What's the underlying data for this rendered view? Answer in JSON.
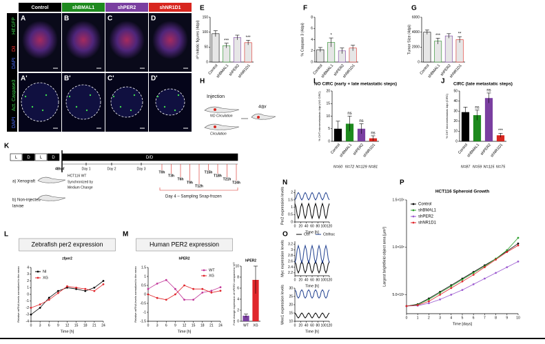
{
  "panels": {
    "letters": [
      "A",
      "B",
      "C",
      "D",
      "A'",
      "B'",
      "C'",
      "D'",
      "E",
      "F",
      "G",
      "H",
      "I",
      "J",
      "K",
      "L",
      "M",
      "N",
      "O",
      "P"
    ],
    "conditions": [
      "Control",
      "shBMAL1",
      "shPER2",
      "shNR1D1"
    ],
    "condition_colors": [
      "#000000",
      "#1e8a1e",
      "#7a3fa0",
      "#d8261f"
    ],
    "row1_stain": [
      "DAPI",
      "DiI",
      "Hif:GFP"
    ],
    "row2_stain": [
      "DAPI",
      "Act. Caspase3"
    ],
    "injection": {
      "title": "Injection",
      "no_circ": "NO Circulation",
      "circ": "Circulation",
      "dpi": "4dpi"
    },
    "timeline": {
      "light": [
        "L",
        "D",
        "L",
        "D"
      ],
      "dd": "D/D",
      "hpf": "48hpf",
      "days": [
        "Day 1",
        "Day 2",
        "Day 3"
      ],
      "times": [
        "T0h",
        "T3h",
        "T6h",
        "T9h",
        "T12h",
        "T15h",
        "T18h",
        "T21h",
        "T24h"
      ],
      "xenograft": "a) Xenograft",
      "cells": "HCT116 WT",
      "sync": [
        "Synchronized by",
        "Medium Change"
      ],
      "noninj": [
        "b) Non-injected",
        "larvae"
      ],
      "day4": "Day 4 – Sampling Snap-frozen"
    }
  },
  "chart_data": [
    {
      "type": "bar",
      "ylabel": "nº mitotic figures (4dpi)",
      "categories": [
        "Control",
        "shBMAL1",
        "shPER2",
        "shNR1D1"
      ],
      "values": [
        95,
        55,
        82,
        65
      ],
      "errors": [
        10,
        8,
        8,
        8
      ],
      "color": "#e6e6e6",
      "edge_colors": [
        "#000000",
        "#1e8a1e",
        "#7a3fa0",
        "#d8261f"
      ],
      "ylim": [
        0,
        150
      ],
      "yticks": [
        0,
        50,
        100,
        150
      ],
      "annotations": [
        {
          "category": "shBMAL1",
          "text": "***"
        },
        {
          "category": "shNR1D1",
          "text": "***"
        }
      ]
    },
    {
      "type": "bar",
      "ylabel": "% Caspase 3 (4dpi)",
      "categories": [
        "Control",
        "shBMAL1",
        "shPER2",
        "shNR1D1"
      ],
      "values": [
        2.2,
        3.5,
        2,
        2.5
      ],
      "errors": [
        0.4,
        0.8,
        0.5,
        0.5
      ],
      "color": "#e6e6e6",
      "edge_colors": [
        "#000000",
        "#1e8a1e",
        "#7a3fa0",
        "#d8261f"
      ],
      "ylim": [
        0,
        8
      ],
      "yticks": [
        0,
        2,
        4,
        6,
        8
      ],
      "annotations": [
        {
          "category": "shBMAL1",
          "text": "*"
        }
      ]
    },
    {
      "type": "bar",
      "ylabel": "Tumor Size (4dpi)",
      "categories": [
        "Control",
        "shBMAL1",
        "shPER2",
        "shNR1D1"
      ],
      "values": [
        4000,
        2800,
        3500,
        3000
      ],
      "errors": [
        300,
        400,
        300,
        400
      ],
      "color": "#e6e6e6",
      "edge_colors": [
        "#000000",
        "#1e8a1e",
        "#7a3fa0",
        "#d8261f"
      ],
      "ylim": [
        0,
        6000
      ],
      "yticks": [
        0,
        2000,
        4000,
        6000
      ],
      "annotations": [
        {
          "category": "shBMAL1",
          "text": "***"
        },
        {
          "category": "shNR1D1",
          "text": "**"
        }
      ]
    },
    {
      "type": "bar",
      "title": "NO CIRC (early + late metastatic steps)",
      "ylabel": "% CHT micrometastasis 4dpi (NO CIRC)",
      "categories": [
        "Control",
        "shBMAL1",
        "shPER2",
        "shNR1D1"
      ],
      "values": [
        5,
        7,
        5,
        1.2
      ],
      "errors": [
        3,
        3,
        2,
        1
      ],
      "colors": [
        "#000000",
        "#1e8a1e",
        "#7a3fa0",
        "#d8261f"
      ],
      "ylim": [
        0,
        20
      ],
      "yticks": [
        0,
        5,
        10,
        15,
        20
      ],
      "annotations": [
        {
          "category": "shBMAL1",
          "text": "ns"
        },
        {
          "category": "shPER2",
          "text": "ns"
        },
        {
          "category": "shNR1D1",
          "text": "ns"
        }
      ],
      "n_labels": [
        "N=60",
        "N=72",
        "N=129",
        "N=81"
      ]
    },
    {
      "type": "bar",
      "title": "CIRC (late metastatic steps)",
      "ylabel": "% CHT micrometastasis 4dpi (CIRC)",
      "categories": [
        "Control",
        "shBMAL1",
        "shPER2",
        "shNR1D1"
      ],
      "values": [
        29,
        26,
        43,
        6
      ],
      "errors": [
        5,
        5,
        5,
        2
      ],
      "colors": [
        "#000000",
        "#1e8a1e",
        "#7a3fa0",
        "#d8261f"
      ],
      "ylim": [
        0,
        50
      ],
      "yticks": [
        0,
        10,
        20,
        30,
        40,
        50
      ],
      "annotations": [
        {
          "category": "shBMAL1",
          "text": "ns"
        },
        {
          "category": "shPER2",
          "text": "ns"
        },
        {
          "category": "shNR1D1",
          "text": "***"
        }
      ],
      "n_labels": [
        "N=87",
        "N=59",
        "N=115",
        "N=75"
      ]
    },
    {
      "type": "line",
      "title": "Zebrafish per2 expression",
      "subtitle": "zfper2",
      "ylabel": "Relative mRNA levels normalized to the mean",
      "xlabel": "Time [h]",
      "x": [
        0,
        3,
        6,
        9,
        12,
        15,
        18,
        21,
        24
      ],
      "markers": true,
      "legend": "upper left",
      "series": [
        {
          "name": "NI",
          "color": "#000000",
          "values": [
            -3,
            -2,
            -0.5,
            0.5,
            1,
            0.8,
            0.5,
            1,
            2
          ]
        },
        {
          "name": "XG",
          "color": "#e0262b",
          "values": [
            -2,
            -1.5,
            -0.8,
            0.2,
            1.2,
            1,
            0.8,
            0.5,
            1.5
          ]
        }
      ],
      "xlim": [
        0,
        24
      ],
      "xticks": [
        0,
        3,
        6,
        9,
        12,
        15,
        18,
        21,
        24
      ],
      "ylim": [
        -4,
        4
      ],
      "yticks": [
        -4,
        -3,
        -2,
        -1,
        0,
        1,
        2,
        3,
        4
      ]
    },
    {
      "type": "line",
      "title": "Human PER2 expression",
      "subtitle": "hPER2",
      "ylabel": "Relative mRNA levels normalized to the mean",
      "xlabel": "Time [h]",
      "x": [
        0,
        3,
        6,
        9,
        12,
        15,
        18,
        21,
        24
      ],
      "markers": true,
      "legend": "upper right",
      "series": [
        {
          "name": "WT",
          "color": "#c2389a",
          "values": [
            0.3,
            0.6,
            0.8,
            0.3,
            -0.3,
            -0.3,
            0.1,
            0.2,
            0.4
          ]
        },
        {
          "name": "XG",
          "color": "#e0262b",
          "values": [
            0,
            -0.2,
            -0.3,
            0,
            0.5,
            0.3,
            0.3,
            0.1,
            0.2
          ]
        }
      ],
      "xlim": [
        0,
        24
      ],
      "xticks": [
        0,
        3,
        6,
        9,
        12,
        15,
        18,
        21,
        24
      ],
      "ylim": [
        -1.5,
        1.5
      ],
      "yticks": [
        -1.5,
        -1,
        -0.5,
        0,
        0.5,
        1,
        1.5
      ]
    },
    {
      "type": "bar",
      "title": "hPER2",
      "ylabel": "Fold change expression of hPER2 compared to WT",
      "categories": [
        "WT",
        "XG"
      ],
      "values": [
        1,
        7.5
      ],
      "errors": [
        0.3,
        2.5
      ],
      "colors": [
        "#7a3fa0",
        "#e0262b"
      ],
      "ylim": [
        0,
        10
      ],
      "yticks": [
        0,
        2,
        4,
        6,
        8,
        10
      ]
    },
    {
      "type": "line",
      "ylabel": "Per2 expression levels",
      "xlabel": "Time [h]",
      "x": [
        0,
        4,
        8,
        12,
        16,
        20,
        24,
        28,
        32,
        36,
        40,
        44,
        48,
        52,
        56,
        60,
        64,
        68,
        72,
        76,
        80,
        84,
        88,
        92,
        96,
        100,
        104,
        108,
        112,
        116,
        120
      ],
      "series": [
        {
          "color": "#000000",
          "values": [
            1.25,
            1.0,
            0.5,
            0.25,
            0.5,
            1.0,
            1.25,
            1.0,
            0.5,
            0.25,
            0.5,
            1.0,
            1.25,
            1.0,
            0.5,
            0.25,
            0.5,
            1.0,
            1.25,
            1.0,
            0.5,
            0.25,
            0.5,
            1.0,
            1.25,
            1.0,
            0.5,
            0.25,
            0.5,
            1.0,
            1.25
          ]
        },
        {
          "color": "#1f3f8f",
          "values": [
            1.5,
            1.625,
            1.875,
            2.0,
            1.875,
            1.625,
            1.5,
            1.625,
            1.875,
            2.0,
            1.875,
            1.625,
            1.5,
            1.625,
            1.875,
            2.0,
            1.875,
            1.625,
            1.5,
            1.625,
            1.875,
            2.0,
            1.875,
            1.625,
            1.5,
            1.625,
            1.875,
            2.0,
            1.875,
            1.625,
            1.5
          ]
        }
      ],
      "xlim": [
        0,
        120
      ],
      "xticks": [
        0,
        20,
        40,
        60,
        80,
        100,
        120
      ],
      "ylim": [
        0,
        2.2
      ],
      "yticks": [
        0,
        0.5,
        1,
        1.5,
        2
      ]
    },
    {
      "type": "line",
      "ylabel": "Myc expression levels",
      "xlabel": "Time [h]",
      "legend": "top",
      "x": [
        0,
        4,
        8,
        12,
        16,
        20,
        24,
        28,
        32,
        36,
        40,
        44,
        48,
        52,
        56,
        60,
        64,
        68,
        72,
        76,
        80,
        84,
        88,
        92,
        96,
        100,
        104,
        108,
        112,
        116,
        120
      ],
      "series": [
        {
          "name": "Ctrl",
          "color": "#000000",
          "values": [
            2.6,
            2.5,
            2.3,
            2.2,
            2.3,
            2.5,
            2.6,
            2.5,
            2.3,
            2.2,
            2.3,
            2.5,
            2.6,
            2.5,
            2.3,
            2.2,
            2.3,
            2.5,
            2.6,
            2.5,
            2.3,
            2.2,
            2.3,
            2.5,
            2.6,
            2.5,
            2.3,
            2.2,
            2.3,
            2.5,
            2.6
          ]
        },
        {
          "name": "Ctrlhsc",
          "color": "#1f3f8f",
          "values": [
            2.55,
            2.7,
            3.0,
            3.15,
            3.0,
            2.7,
            2.55,
            2.7,
            3.0,
            3.15,
            3.0,
            2.7,
            2.55,
            2.7,
            3.0,
            3.15,
            3.0,
            2.7,
            2.55,
            2.7,
            3.0,
            3.15,
            3.0,
            2.7,
            2.55,
            2.7,
            3.0,
            3.15,
            3.0,
            2.7,
            2.55
          ]
        }
      ],
      "xlim": [
        0,
        120
      ],
      "xticks": [
        0,
        20,
        40,
        60,
        80,
        100,
        120
      ],
      "ylim": [
        2.1,
        3.3
      ],
      "yticks": [
        2.2,
        2.4,
        2.6,
        2.8,
        3,
        3.2
      ]
    },
    {
      "type": "line",
      "ylabel": "Wee1 expression levels",
      "xlabel": "Time [h]",
      "x": [
        0,
        4,
        8,
        12,
        16,
        20,
        24,
        28,
        32,
        36,
        40,
        44,
        48,
        52,
        56,
        60,
        64,
        68,
        72,
        76,
        80,
        84,
        88,
        92,
        96,
        100,
        104,
        108,
        112,
        116,
        120
      ],
      "series": [
        {
          "color": "#000000",
          "values": [
            15,
            14.2,
            12.8,
            12,
            12.8,
            14.2,
            15,
            14.2,
            12.8,
            12,
            12.8,
            14.2,
            15,
            14.2,
            12.8,
            12,
            12.8,
            14.2,
            15,
            14.2,
            12.8,
            12,
            12.8,
            14.2,
            15,
            14.2,
            12.8,
            12,
            12.8,
            14.2,
            15
          ]
        },
        {
          "color": "#1f3f8f",
          "values": [
            29,
            28,
            25,
            24,
            25,
            28,
            29,
            28,
            25,
            24,
            25,
            28,
            29,
            28,
            25,
            24,
            25,
            28,
            29,
            28,
            25,
            24,
            25,
            28,
            29,
            28,
            25,
            24,
            25,
            28,
            29
          ]
        }
      ],
      "xlim": [
        0,
        120
      ],
      "xticks": [
        0,
        20,
        40,
        60,
        80,
        100,
        120
      ],
      "ylim": [
        10,
        30
      ],
      "yticks": [
        10,
        15,
        20,
        25,
        30
      ]
    },
    {
      "type": "line",
      "title": "HCT116 Spheroid Growth",
      "ylabel": "Largest brightfield object area [µm²]",
      "xlabel": "Time [days]",
      "x": [
        0,
        1,
        2,
        3,
        4,
        5,
        6,
        7,
        8,
        9,
        10
      ],
      "markers": true,
      "legend": "upper left",
      "series": [
        {
          "name": "Control",
          "color": "#000000",
          "values": [
            380000,
            400000,
            460000,
            530000,
            600000,
            670000,
            740000,
            810000,
            880000,
            960000,
            1040000
          ]
        },
        {
          "name": "shBMAL1",
          "color": "#2ca02c",
          "values": [
            380000,
            395000,
            450000,
            520000,
            590000,
            660000,
            730000,
            800000,
            880000,
            970000,
            1100000
          ]
        },
        {
          "name": "shPER2",
          "color": "#9b59d0",
          "values": [
            380000,
            385000,
            410000,
            450000,
            500000,
            550000,
            610000,
            670000,
            730000,
            790000,
            850000
          ]
        },
        {
          "name": "shNR1D1",
          "color": "#e0262b",
          "values": [
            380000,
            390000,
            430000,
            500000,
            570000,
            640000,
            710000,
            790000,
            870000,
            950000,
            1020000
          ]
        }
      ],
      "xlim": [
        0,
        10
      ],
      "xticks": [
        0,
        1,
        2,
        3,
        4,
        5,
        6,
        7,
        8,
        9,
        10
      ],
      "ylim": [
        300000,
        1500000
      ],
      "yticks": [
        {
          "value": 500000,
          "label": "5.0×10⁵"
        },
        {
          "value": 1000000,
          "label": "1.0×10⁶"
        },
        {
          "value": 1500000,
          "label": "1.5×10⁶"
        }
      ]
    }
  ]
}
